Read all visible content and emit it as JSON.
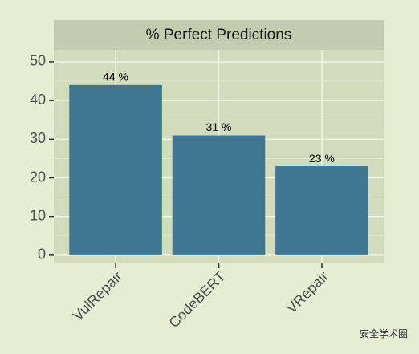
{
  "chart_data": {
    "type": "bar",
    "title": "% Perfect Predictions",
    "categories": [
      "VulRepair",
      "CodeBERT",
      "VRepair"
    ],
    "values": [
      44,
      31,
      23
    ],
    "value_labels": [
      "44 %",
      "31 %",
      "23 %"
    ],
    "color": "#3f7793",
    "ylim": [
      -2.1,
      53.1
    ],
    "yticks": [
      0,
      10,
      20,
      30,
      40,
      50
    ],
    "y_minor_ticks": [
      5,
      15,
      25,
      35,
      45
    ],
    "grid": true,
    "watermark": "安全学术圈"
  }
}
